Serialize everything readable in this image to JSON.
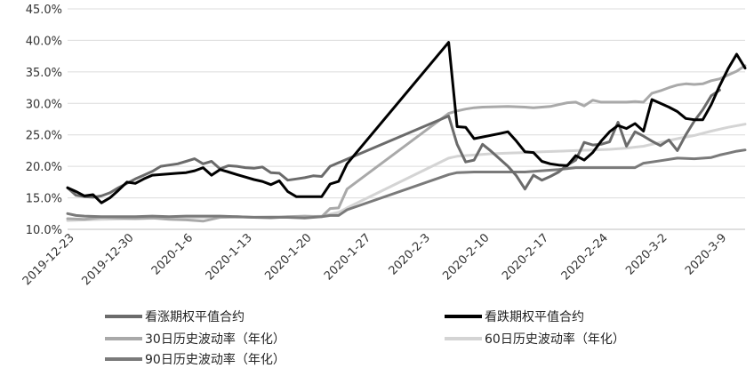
{
  "chart_data": {
    "type": "line",
    "title": "",
    "xlabel": "",
    "ylabel": "",
    "x_ticks": [
      "2019-12-23",
      "2019-12-30",
      "2020-1-6",
      "2020-1-13",
      "2020-1-20",
      "2020-1-27",
      "2020-2-3",
      "2020-2-10",
      "2020-2-17",
      "2020-2-24",
      "2020-3-2",
      "2020-3-9"
    ],
    "y_ticks": [
      "10.0%",
      "15.0%",
      "20.0%",
      "25.0%",
      "30.0%",
      "35.0%",
      "40.0%",
      "45.0%"
    ],
    "ylim": [
      10,
      45
    ],
    "xlim": [
      0,
      77
    ],
    "grid": "horizontal",
    "legend_position": "bottom",
    "series": [
      {
        "name": "看涨期权平值合约",
        "color": "#6b6b6b",
        "width": 3,
        "points": [
          [
            0,
            16.6
          ],
          [
            1,
            15.4
          ],
          [
            2,
            15.2
          ],
          [
            3,
            15.1
          ],
          [
            4,
            15.3
          ],
          [
            5,
            15.8
          ],
          [
            6,
            16.6
          ],
          [
            7,
            17.3
          ],
          [
            8,
            18.0
          ],
          [
            9,
            18.6
          ],
          [
            10,
            19.2
          ],
          [
            11,
            20.0
          ],
          [
            12,
            20.2
          ],
          [
            13,
            20.4
          ],
          [
            14,
            20.8
          ],
          [
            15,
            21.2
          ],
          [
            16,
            20.4
          ],
          [
            17,
            20.8
          ],
          [
            18,
            19.6
          ],
          [
            19,
            20.1
          ],
          [
            20,
            20.0
          ],
          [
            21,
            19.8
          ],
          [
            22,
            19.7
          ],
          [
            23,
            19.9
          ],
          [
            24,
            19.0
          ],
          [
            25,
            18.9
          ],
          [
            26,
            17.8
          ],
          [
            27,
            18.0
          ],
          [
            28,
            18.2
          ],
          [
            29,
            18.5
          ],
          [
            30,
            18.4
          ],
          [
            31,
            20.0
          ],
          [
            45,
            28.0
          ],
          [
            46,
            23.5
          ],
          [
            47,
            20.7
          ],
          [
            48,
            21.0
          ],
          [
            49,
            23.5
          ],
          [
            50,
            22.4
          ],
          [
            51,
            21.2
          ],
          [
            52,
            20.0
          ],
          [
            53,
            18.5
          ],
          [
            54,
            16.4
          ],
          [
            55,
            18.6
          ],
          [
            56,
            17.8
          ],
          [
            57,
            18.4
          ],
          [
            58,
            19.1
          ],
          [
            59,
            20.2
          ],
          [
            60,
            21.0
          ],
          [
            61,
            23.8
          ],
          [
            62,
            23.4
          ],
          [
            63,
            23.5
          ],
          [
            64,
            23.9
          ],
          [
            65,
            27.0
          ],
          [
            66,
            23.2
          ],
          [
            67,
            25.5
          ],
          [
            68,
            24.8
          ],
          [
            69,
            24.0
          ],
          [
            70,
            23.3
          ],
          [
            71,
            24.2
          ],
          [
            72,
            22.5
          ],
          [
            73,
            25.0
          ],
          [
            74,
            27.2
          ],
          [
            75,
            29.0
          ],
          [
            76,
            31.2
          ],
          [
            77,
            32.1
          ]
        ]
      },
      {
        "name": "看跌期权平值合约",
        "color": "#000000",
        "width": 3,
        "points": [
          [
            0,
            16.6
          ],
          [
            1,
            16.0
          ],
          [
            2,
            15.3
          ],
          [
            3,
            15.5
          ],
          [
            4,
            14.2
          ],
          [
            5,
            15.0
          ],
          [
            6,
            16.2
          ],
          [
            7,
            17.5
          ],
          [
            8,
            17.3
          ],
          [
            9,
            18.0
          ],
          [
            10,
            18.6
          ],
          [
            11,
            18.7
          ],
          [
            12,
            18.8
          ],
          [
            13,
            18.9
          ],
          [
            14,
            19.0
          ],
          [
            15,
            19.3
          ],
          [
            16,
            19.8
          ],
          [
            17,
            18.6
          ],
          [
            18,
            19.5
          ],
          [
            19,
            19.1
          ],
          [
            20,
            18.7
          ],
          [
            21,
            18.3
          ],
          [
            22,
            17.9
          ],
          [
            23,
            17.6
          ],
          [
            24,
            17.1
          ],
          [
            25,
            17.7
          ],
          [
            26,
            16.0
          ],
          [
            27,
            15.2
          ],
          [
            28,
            15.2
          ],
          [
            29,
            15.2
          ],
          [
            30,
            15.2
          ],
          [
            31,
            17.2
          ],
          [
            32,
            17.6
          ],
          [
            33,
            20.4
          ],
          [
            45,
            39.7
          ],
          [
            46,
            26.3
          ],
          [
            47,
            26.2
          ],
          [
            48,
            24.4
          ],
          [
            51,
            25.2
          ],
          [
            52,
            25.5
          ],
          [
            53,
            24.0
          ],
          [
            54,
            22.3
          ],
          [
            55,
            22.2
          ],
          [
            56,
            20.8
          ],
          [
            57,
            20.4
          ],
          [
            58,
            20.2
          ],
          [
            59,
            20.1
          ],
          [
            60,
            21.7
          ],
          [
            61,
            21.0
          ],
          [
            62,
            22.2
          ],
          [
            63,
            24.0
          ],
          [
            64,
            25.5
          ],
          [
            65,
            26.5
          ],
          [
            66,
            26.0
          ],
          [
            67,
            26.8
          ],
          [
            68,
            25.6
          ],
          [
            69,
            30.6
          ],
          [
            70,
            30.0
          ],
          [
            71,
            29.4
          ],
          [
            72,
            28.7
          ],
          [
            73,
            27.6
          ],
          [
            74,
            27.4
          ],
          [
            75,
            27.4
          ],
          [
            76,
            29.8
          ],
          [
            77,
            32.8
          ],
          [
            78,
            35.5
          ],
          [
            79,
            37.8
          ],
          [
            80,
            35.6
          ]
        ]
      },
      {
        "name": "30日历史波动率（年化）",
        "color": "#a9a9a9",
        "width": 3,
        "points": [
          [
            0,
            11.7
          ],
          [
            2,
            11.6
          ],
          [
            4,
            11.9
          ],
          [
            6,
            11.8
          ],
          [
            8,
            11.7
          ],
          [
            10,
            11.8
          ],
          [
            12,
            11.6
          ],
          [
            14,
            11.5
          ],
          [
            16,
            11.3
          ],
          [
            17,
            11.6
          ],
          [
            18,
            11.9
          ],
          [
            20,
            12.0
          ],
          [
            22,
            11.9
          ],
          [
            24,
            11.8
          ],
          [
            26,
            12.0
          ],
          [
            28,
            12.1
          ],
          [
            30,
            12.0
          ],
          [
            31,
            13.3
          ],
          [
            32,
            13.4
          ],
          [
            33,
            16.4
          ],
          [
            45,
            28.4
          ],
          [
            46,
            28.8
          ],
          [
            47,
            29.1
          ],
          [
            48,
            29.3
          ],
          [
            49,
            29.4
          ],
          [
            52,
            29.5
          ],
          [
            54,
            29.4
          ],
          [
            55,
            29.3
          ],
          [
            56,
            29.4
          ],
          [
            57,
            29.5
          ],
          [
            58,
            29.8
          ],
          [
            59,
            30.1
          ],
          [
            60,
            30.2
          ],
          [
            61,
            29.6
          ],
          [
            62,
            30.5
          ],
          [
            63,
            30.2
          ],
          [
            64,
            30.2
          ],
          [
            65,
            30.2
          ],
          [
            66,
            30.2
          ],
          [
            67,
            30.3
          ],
          [
            68,
            30.2
          ],
          [
            69,
            31.6
          ],
          [
            70,
            32.0
          ],
          [
            71,
            32.5
          ],
          [
            72,
            32.9
          ],
          [
            73,
            33.1
          ],
          [
            74,
            33.0
          ],
          [
            75,
            33.1
          ],
          [
            76,
            33.6
          ],
          [
            77,
            33.9
          ],
          [
            78,
            34.5
          ],
          [
            79,
            35.1
          ],
          [
            80,
            36.0
          ]
        ]
      },
      {
        "name": "60日历史波动率（年化）",
        "color": "#d4d4d4",
        "width": 3,
        "points": [
          [
            0,
            11.4
          ],
          [
            4,
            11.6
          ],
          [
            8,
            11.7
          ],
          [
            12,
            11.8
          ],
          [
            16,
            11.9
          ],
          [
            20,
            11.9
          ],
          [
            24,
            12.0
          ],
          [
            28,
            12.0
          ],
          [
            30,
            12.1
          ],
          [
            32,
            12.7
          ],
          [
            33,
            13.4
          ],
          [
            45,
            21.3
          ],
          [
            46,
            21.6
          ],
          [
            48,
            21.8
          ],
          [
            50,
            22.0
          ],
          [
            52,
            22.1
          ],
          [
            54,
            22.2
          ],
          [
            56,
            22.3
          ],
          [
            58,
            22.4
          ],
          [
            60,
            22.5
          ],
          [
            62,
            22.6
          ],
          [
            64,
            22.7
          ],
          [
            66,
            22.9
          ],
          [
            68,
            23.2
          ],
          [
            70,
            23.8
          ],
          [
            72,
            24.4
          ],
          [
            74,
            24.9
          ],
          [
            76,
            25.6
          ],
          [
            78,
            26.2
          ],
          [
            80,
            26.7
          ]
        ]
      },
      {
        "name": "90日历史波动率（年化）",
        "color": "#7a7a7a",
        "width": 3,
        "points": [
          [
            0,
            12.5
          ],
          [
            1,
            12.2
          ],
          [
            2,
            12.1
          ],
          [
            4,
            12.0
          ],
          [
            6,
            12.0
          ],
          [
            8,
            12.0
          ],
          [
            10,
            12.1
          ],
          [
            12,
            12.0
          ],
          [
            14,
            12.1
          ],
          [
            16,
            12.1
          ],
          [
            18,
            12.1
          ],
          [
            20,
            12.0
          ],
          [
            22,
            11.9
          ],
          [
            24,
            11.9
          ],
          [
            26,
            11.9
          ],
          [
            28,
            11.8
          ],
          [
            30,
            12.0
          ],
          [
            31,
            12.2
          ],
          [
            32,
            12.2
          ],
          [
            33,
            13.1
          ],
          [
            45,
            18.7
          ],
          [
            46,
            19.0
          ],
          [
            48,
            19.1
          ],
          [
            50,
            19.1
          ],
          [
            52,
            19.1
          ],
          [
            54,
            19.1
          ],
          [
            56,
            19.3
          ],
          [
            58,
            19.5
          ],
          [
            60,
            19.8
          ],
          [
            62,
            19.8
          ],
          [
            64,
            19.8
          ],
          [
            66,
            19.8
          ],
          [
            67,
            19.8
          ],
          [
            68,
            20.5
          ],
          [
            70,
            20.9
          ],
          [
            72,
            21.3
          ],
          [
            74,
            21.2
          ],
          [
            76,
            21.4
          ],
          [
            77,
            21.8
          ],
          [
            78,
            22.1
          ],
          [
            79,
            22.4
          ],
          [
            80,
            22.6
          ]
        ]
      }
    ]
  }
}
